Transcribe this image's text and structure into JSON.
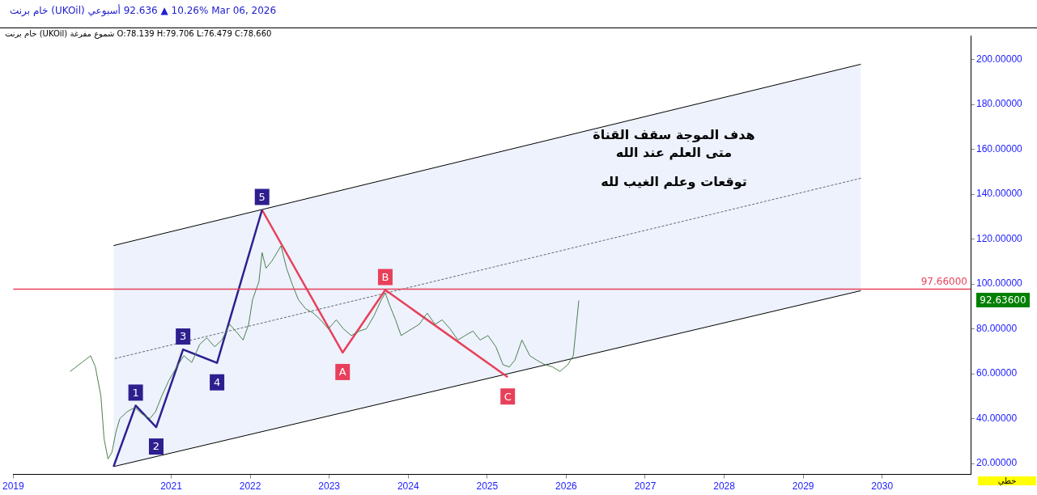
{
  "chart_data": {
    "type": "line",
    "title": "خام برنت (UKOil) أسبوعي 92.636 ▲ 10.26% Mar 06, 2026",
    "subtitle": "خام برنت (UKOil) شموع مفرغة O:78.139 H:79.706 L:76.479 C:78.660",
    "series": [
      {
        "color": "#4f7f4f",
        "x": [
          2019.72,
          2019.98,
          2020.04,
          2020.11,
          2020.15,
          2020.2,
          2020.25,
          2020.3,
          2020.35,
          2020.44,
          2020.54,
          2020.63,
          2020.73,
          2020.8,
          2020.88,
          2020.97,
          2021.07,
          2021.16,
          2021.26,
          2021.36,
          2021.45,
          2021.55,
          2021.64,
          2021.74,
          2021.84,
          2021.91,
          2021.98,
          2022.03,
          2022.11,
          2022.15,
          2022.2,
          2022.27,
          2022.34,
          2022.39,
          2022.46,
          2022.53,
          2022.61,
          2022.7,
          2022.8,
          2022.89,
          2022.99,
          2023.09,
          2023.18,
          2023.28,
          2023.38,
          2023.47,
          2023.57,
          2023.66,
          2023.71,
          2023.76,
          2023.84,
          2023.91,
          2024.0,
          2024.14,
          2024.24,
          2024.34,
          2024.43,
          2024.53,
          2024.63,
          2024.72,
          2024.82,
          2024.91,
          2025.01,
          2025.11,
          2025.2,
          2025.28,
          2025.35,
          2025.44,
          2025.54,
          2025.63,
          2025.73,
          2025.83,
          2025.92,
          2026.02,
          2026.09,
          2026.16
        ],
        "values": [
          61,
          68,
          63,
          50,
          31,
          22,
          25,
          34,
          40,
          43,
          45,
          42,
          40,
          43,
          50,
          57,
          63,
          68,
          65,
          73,
          76,
          72,
          75,
          82,
          78,
          75,
          82,
          93,
          101,
          114,
          107,
          110,
          114,
          117,
          107,
          100,
          93,
          89,
          87,
          84,
          80,
          84,
          80,
          77,
          79,
          80,
          86,
          93,
          96,
          91,
          84,
          77,
          79,
          82,
          87,
          82,
          84,
          80,
          75,
          77,
          79,
          75,
          77,
          72,
          64,
          63,
          66,
          75,
          68,
          66,
          64,
          63,
          61,
          64,
          68,
          92.6
        ]
      },
      {
        "color": "#2e1f8f",
        "x": [
          2020.27,
          2020.55,
          2020.81,
          2021.15,
          2021.58,
          2022.15
        ],
        "values": [
          18.6,
          45.8,
          36.2,
          70.8,
          64.8,
          133
        ]
      },
      {
        "color": "#e8405a",
        "x": [
          2022.15,
          2023.17,
          2023.71,
          2025.26
        ],
        "values": [
          133,
          69.4,
          97.3,
          58.5
        ]
      },
      {
        "color": "#000000",
        "x": [
          2020.27,
          2029.73
        ],
        "values": [
          117.1,
          197.9
        ]
      },
      {
        "color": "#000000",
        "x": [
          2020.27,
          2029.73
        ],
        "values": [
          18.6,
          97.0
        ]
      },
      {
        "color": "#000000",
        "line_style": "dashed",
        "x": [
          2020.27,
          2029.73
        ],
        "values": [
          66.6,
          147.1
        ],
        "lower": [
          18.6,
          97.0
        ],
        "upper": [
          117.1,
          197.9
        ]
      }
    ],
    "xlim": [
      2019,
      2031.12
    ],
    "ylim": [
      15.1,
      210.6
    ],
    "xticks": [
      2019,
      2021,
      2022,
      2023,
      2024,
      2025,
      2026,
      2027,
      2028,
      2029,
      2030
    ],
    "yticks": [
      {
        "value": 20,
        "label": "20.00000"
      },
      {
        "value": 40,
        "label": "40.00000"
      },
      {
        "value": 60,
        "label": "60.00000"
      },
      {
        "value": 80,
        "label": "80.00000"
      },
      {
        "value": 100,
        "label": "100.00000"
      },
      {
        "value": 120,
        "label": "120.00000"
      },
      {
        "value": 140,
        "label": "140.00000"
      },
      {
        "value": 160,
        "label": "160.00000"
      },
      {
        "value": 180,
        "label": "180.00000"
      },
      {
        "value": 200,
        "label": "200.00000"
      }
    ],
    "ref_lines": [
      {
        "axis": "y",
        "value": 97.66,
        "label": "97.66000",
        "color": "#e8405a"
      }
    ],
    "annotations": [
      {
        "text": "1",
        "x": 2020.55,
        "y": 45.8
      },
      {
        "text": "2",
        "x": 2020.81,
        "y": 36.2
      },
      {
        "text": "3",
        "x": 2021.15,
        "y": 70.8
      },
      {
        "text": "4",
        "x": 2021.58,
        "y": 64.8
      },
      {
        "text": "5",
        "x": 2022.15,
        "y": 133
      },
      {
        "text": "A",
        "x": 2023.17,
        "y": 69.4
      },
      {
        "text": "B",
        "x": 2023.71,
        "y": 97.3
      },
      {
        "text": "C",
        "x": 2025.26,
        "y": 58.5
      },
      "هدف الموجة سقف القناة\nمتى العلم عند الله",
      "توقعات وعلم الغيب لله",
      "خطي",
      "92.63600"
    ],
    "grid": false,
    "legend": false,
    "marker": "none",
    "line_style": "solid"
  }
}
